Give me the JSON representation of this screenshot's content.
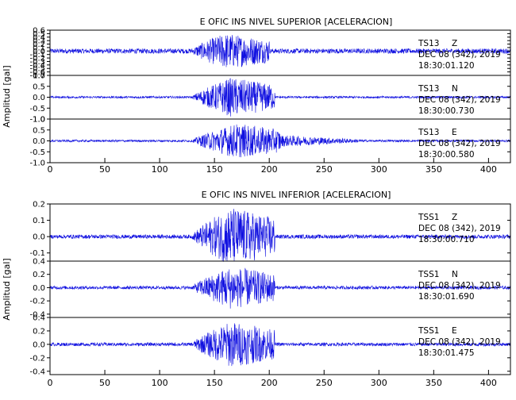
{
  "colors": {
    "trace": "#1010e0",
    "axis": "#000000",
    "background": "#ffffff"
  },
  "chart_data": [
    {
      "type": "line",
      "title": "E OFIC INS NIVEL SUPERIOR [ACELERACION]",
      "ylabel": "Amplitud [gal]",
      "xlabel": "",
      "xlim": [
        0,
        420
      ],
      "xticks": [
        "0",
        "50",
        "100",
        "150",
        "200",
        "250",
        "300",
        "350",
        "400"
      ],
      "grid": false,
      "series": [
        {
          "name": "TS13 Z",
          "label_station": "TS13",
          "label_comp": "Z",
          "date": "DEC 08 (342), 2019",
          "time": "18:30:01.120",
          "ylim": [
            -0.7,
            0.6
          ],
          "yticks": [
            "0.6",
            "0.5",
            "0.4",
            "0.3",
            "0.2",
            "0.1",
            "0.0",
            "-0.1",
            "-0.2",
            "-0.3",
            "-0.4",
            "-0.5",
            "-0.6",
            "-0.7"
          ],
          "noise": 0.07,
          "strong_amp": 0.45,
          "strong_start": 130,
          "strong_peak": 160,
          "strong_end": 200,
          "tail_amp": 0.0,
          "tail_end": 200
        },
        {
          "name": "TS13 N",
          "label_station": "TS13",
          "label_comp": "N",
          "date": "DEC 08 (342), 2019",
          "time": "18:30:00.730",
          "ylim": [
            -1.0,
            1.0
          ],
          "yticks": [
            "1.0",
            "0.5",
            "0.0",
            "-0.5",
            "-1.0"
          ],
          "noise": 0.05,
          "strong_amp": 0.85,
          "strong_start": 130,
          "strong_peak": 165,
          "strong_end": 205,
          "tail_amp": 0.0,
          "tail_end": 205
        },
        {
          "name": "TS13 E",
          "label_station": "TS13",
          "label_comp": "E",
          "date": "DEC 08 (342), 2019",
          "time": "18:30:00.580",
          "ylim": [
            -1.0,
            1.0
          ],
          "yticks": [
            "1.0",
            "0.5",
            "0.0",
            "-0.5",
            "-1.0"
          ],
          "noise": 0.05,
          "strong_amp": 0.75,
          "strong_start": 130,
          "strong_peak": 170,
          "strong_end": 210,
          "tail_amp": 0.22,
          "tail_end": 290
        }
      ]
    },
    {
      "type": "line",
      "title": "E OFIC INS NIVEL INFERIOR [ACELERACION]",
      "ylabel": "Amplitud [gal]",
      "xlabel": "",
      "xlim": [
        0,
        420
      ],
      "xticks": [
        "0",
        "50",
        "100",
        "150",
        "200",
        "250",
        "300",
        "350",
        "400"
      ],
      "grid": false,
      "series": [
        {
          "name": "TSS1 Z",
          "label_station": "TSS1",
          "label_comp": "Z",
          "date": "DEC 08 (342), 2019",
          "time": "18:30:00.710",
          "ylim": [
            -0.15,
            0.2
          ],
          "yticks": [
            "0.2",
            "0.1",
            "0.0",
            "-0.1"
          ],
          "noise": 0.012,
          "strong_amp": 0.17,
          "strong_start": 130,
          "strong_peak": 165,
          "strong_end": 205,
          "tail_amp": 0.0,
          "tail_end": 205
        },
        {
          "name": "TSS1 N",
          "label_station": "TSS1",
          "label_comp": "N",
          "date": "DEC 08 (342), 2019",
          "time": "18:30:01.690",
          "ylim": [
            -0.45,
            0.4
          ],
          "yticks": [
            "0.4",
            "0.2",
            "0.0",
            "-0.2",
            "-0.4"
          ],
          "noise": 0.025,
          "strong_amp": 0.3,
          "strong_start": 130,
          "strong_peak": 165,
          "strong_end": 205,
          "tail_amp": 0.0,
          "tail_end": 205
        },
        {
          "name": "TSS1 E",
          "label_station": "TSS1",
          "label_comp": "E",
          "date": "DEC 08 (342), 2019",
          "time": "18:30:01.475",
          "ylim": [
            -0.45,
            0.4
          ],
          "yticks": [
            "0.4",
            "0.2",
            "0.0",
            "-0.2",
            "-0.4"
          ],
          "noise": 0.025,
          "strong_amp": 0.32,
          "strong_start": 130,
          "strong_peak": 165,
          "strong_end": 205,
          "tail_amp": 0.0,
          "tail_end": 205
        }
      ]
    }
  ]
}
